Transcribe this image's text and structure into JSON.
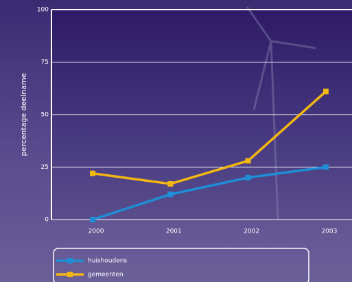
{
  "chart_data": {
    "type": "line",
    "y_label": "percentage deelname",
    "categories": [
      "2000",
      "2001",
      "2002",
      "2003"
    ],
    "series": [
      {
        "name": "huishoudens",
        "color": "#1e8fd6",
        "values": [
          0,
          12,
          20,
          25
        ]
      },
      {
        "name": "gemeenten",
        "color": "#f2b712",
        "values": [
          22,
          17,
          28,
          61
        ]
      }
    ],
    "ylim": [
      0,
      100
    ],
    "yticks": [
      0,
      25,
      50,
      75,
      100
    ],
    "grid": true
  }
}
